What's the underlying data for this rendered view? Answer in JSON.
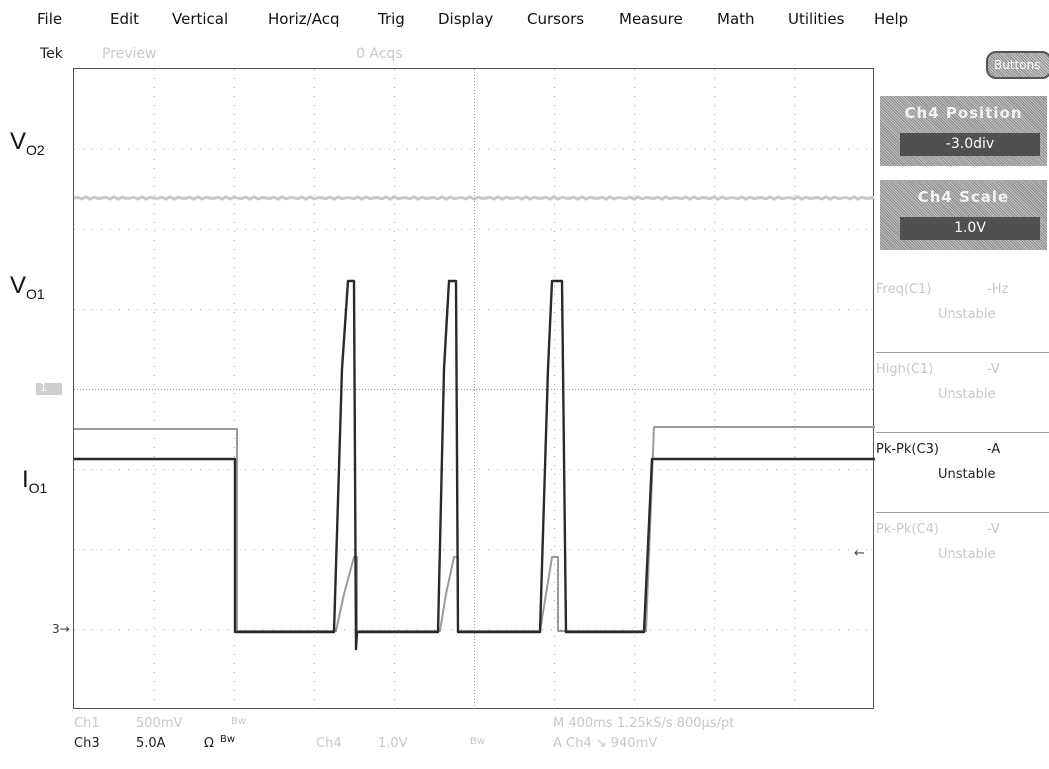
{
  "menu": {
    "items": [
      "File",
      "Edit",
      "Vertical",
      "Horiz/Acq",
      "Trig",
      "Display",
      "Cursors",
      "Measure",
      "Math",
      "Utilities",
      "Help"
    ]
  },
  "status": {
    "brand": "Tek",
    "mode": "Preview",
    "acquisitions": "0 Acqs"
  },
  "labels": {
    "v_o2_main": "V",
    "v_o2_sub": "O2",
    "v_o1_main": "V",
    "v_o1_sub": "O1",
    "i_o1_main": "I",
    "i_o1_sub": "O1"
  },
  "markers": {
    "ch1_marker": "1",
    "ch3_marker": "3",
    "ch4_marker": "←"
  },
  "side_panel": {
    "buttons_label": "Buttons",
    "ch4_position": {
      "title": "Ch4 Position",
      "value": "-3.0div"
    },
    "ch4_scale": {
      "title": "Ch4 Scale",
      "value": "1.0V"
    },
    "measurements": [
      {
        "name": "Freq(C1)",
        "unit": "-Hz",
        "state": "Unstable",
        "dim": true
      },
      {
        "name": "High(C1)",
        "unit": "-V",
        "state": "Unstable",
        "dim": true
      },
      {
        "name": "Pk-Pk(C3)",
        "unit": "-A",
        "state": "Unstable",
        "dim": false
      },
      {
        "name": "Pk-Pk(C4)",
        "unit": "-V",
        "state": "Unstable",
        "dim": true
      }
    ]
  },
  "readouts": {
    "ch1_label": "Ch1",
    "ch1_scale": "500mV",
    "ch1_bw": "Bw",
    "ch3_label": "Ch3",
    "ch3_scale": "5.0A",
    "ch3_ohm": "Ω",
    "ch3_bw": "Bw",
    "ch4_label": "Ch4",
    "ch4_scale": "1.0V",
    "ch4_bw": "Bw",
    "timebase": "M 400ms 1.25kS/s  800µs/pt",
    "trigger": "A  Ch4  ↘  940mV"
  },
  "colors": {
    "trace_dark": "#2a2a2a",
    "trace_gray": "#9a9a9a",
    "trace_light": "#c8c8c8",
    "grid": "#9a9a9a",
    "panel_value_bg": "#505050"
  }
}
